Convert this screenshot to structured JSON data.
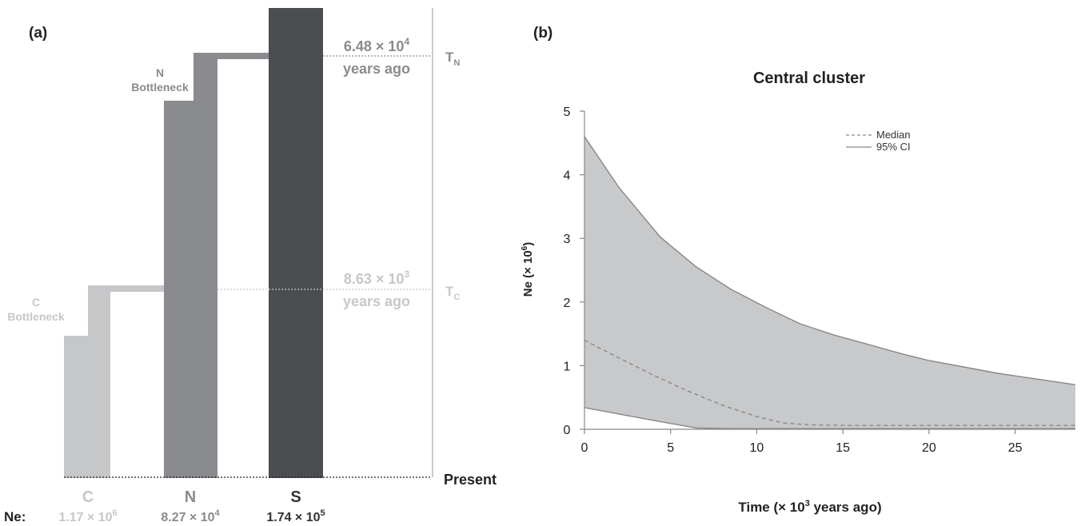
{
  "panel_a": {
    "label": "(a)",
    "populations": [
      {
        "name": "C",
        "bottleneck_label_1": "C",
        "bottleneck_label_2": "Bottleneck",
        "ne": "1.17 × 10",
        "ne_exp": "6",
        "color": "#c6c7c9"
      },
      {
        "name": "N",
        "bottleneck_label_1": "N",
        "bottleneck_label_2": "Bottleneck",
        "ne": "8.27 × 10",
        "ne_exp": "4",
        "color": "#8a8b8f"
      },
      {
        "name": "S",
        "ne": "1.74 × 10",
        "ne_exp": "5",
        "color": "#4c4d50"
      }
    ],
    "ne_prefix": "Ne:",
    "times": [
      {
        "label": "T",
        "sub": "N",
        "value": "6.48 × 10",
        "exp": "4",
        "line2": "years ago"
      },
      {
        "label": "T",
        "sub": "C",
        "value": "8.63 × 10",
        "exp": "3",
        "line2": "years ago"
      }
    ],
    "present_label": "Present"
  },
  "chart_data": {
    "type": "area",
    "panel_label": "(b)",
    "title": "Central cluster",
    "xlabel_pre": "Time (× 10",
    "xlabel_exp": "3",
    "xlabel_post": " years ago)",
    "ylabel_pre": "Ne (× 10",
    "ylabel_exp": "6",
    "ylabel_post": ")",
    "xlim": [
      0,
      28.5
    ],
    "ylim": [
      0,
      5
    ],
    "xticks": [
      0,
      5,
      10,
      15,
      20,
      25
    ],
    "yticks": [
      0,
      1,
      2,
      3,
      4,
      5
    ],
    "legend": {
      "position": "top-right",
      "entries": [
        {
          "label": "Median",
          "style": "dashed"
        },
        {
          "label": "95% CI",
          "style": "solid"
        }
      ]
    },
    "series": [
      {
        "name": "95% CI",
        "role": "upper",
        "x": [
          0,
          2,
          4.4,
          6.5,
          8.5,
          10.5,
          12.5,
          14.5,
          16.5,
          18.5,
          20,
          22,
          24,
          26,
          28,
          28.5
        ],
        "y": [
          4.6,
          3.8,
          3.02,
          2.55,
          2.2,
          1.92,
          1.66,
          1.48,
          1.33,
          1.18,
          1.08,
          0.98,
          0.88,
          0.8,
          0.72,
          0.7
        ]
      },
      {
        "name": "95% CI",
        "role": "lower",
        "x": [
          0,
          2,
          4.4,
          6.5,
          8.5,
          10.5,
          15,
          20,
          25,
          28.5
        ],
        "y": [
          0.34,
          0.24,
          0.12,
          0.02,
          0.01,
          0.01,
          0.01,
          0.01,
          0.01,
          0.01
        ]
      },
      {
        "name": "Median",
        "role": "median",
        "x": [
          0,
          2,
          4,
          6,
          8,
          10,
          11.5,
          13,
          15,
          20,
          25,
          28.5
        ],
        "y": [
          1.4,
          1.12,
          0.85,
          0.6,
          0.38,
          0.2,
          0.1,
          0.07,
          0.06,
          0.06,
          0.06,
          0.06
        ]
      }
    ],
    "colors": {
      "fill": "#c8c9cb",
      "line": "#888888"
    }
  }
}
